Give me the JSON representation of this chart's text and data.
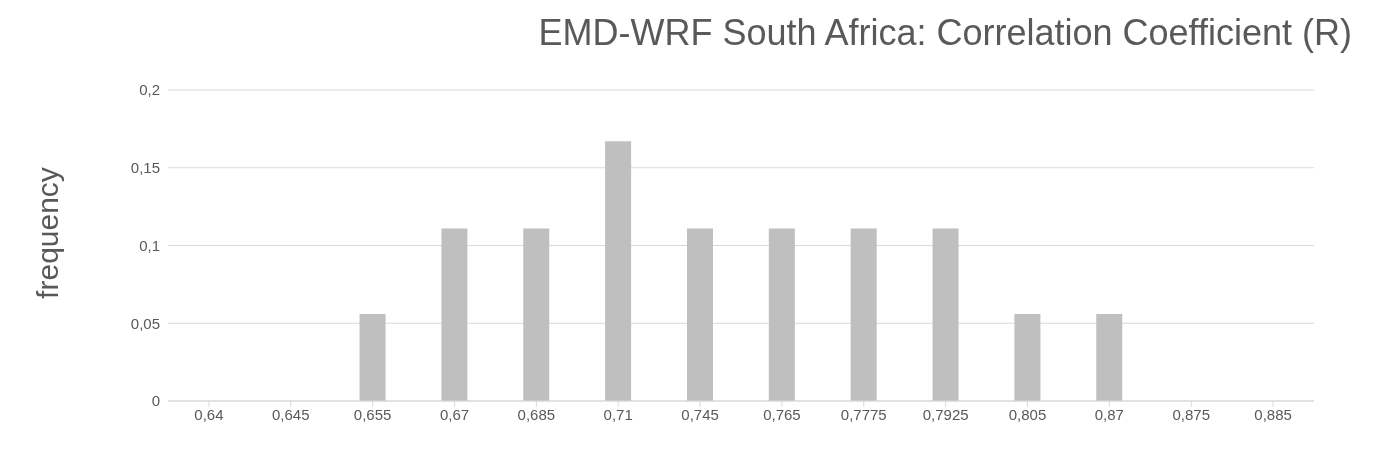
{
  "chart_data": {
    "type": "bar",
    "title": "EMD-WRF South Africa: Correlation Coefficient (R)",
    "ylabel": "frequency",
    "categories": [
      "0,64",
      "0,645",
      "0,655",
      "0,67",
      "0,685",
      "0,71",
      "0,745",
      "0,765",
      "0,7775",
      "0,7925",
      "0,805",
      "0,87",
      "0,875",
      "0,885"
    ],
    "values": [
      0,
      0,
      0.056,
      0.111,
      0.111,
      0.167,
      0.111,
      0.111,
      0.111,
      0.111,
      0.056,
      0.056,
      0,
      0
    ],
    "color": "#bfbfbf",
    "ylim": [
      0,
      0.2
    ],
    "yticks": [
      0,
      {
        "value": 0.05,
        "label": "0,05"
      },
      {
        "value": 0.1,
        "label": "0,1"
      },
      {
        "value": 0.15,
        "label": "0,15"
      },
      {
        "value": 0.2,
        "label": "0,2"
      }
    ],
    "grid": "y",
    "legend": false
  }
}
